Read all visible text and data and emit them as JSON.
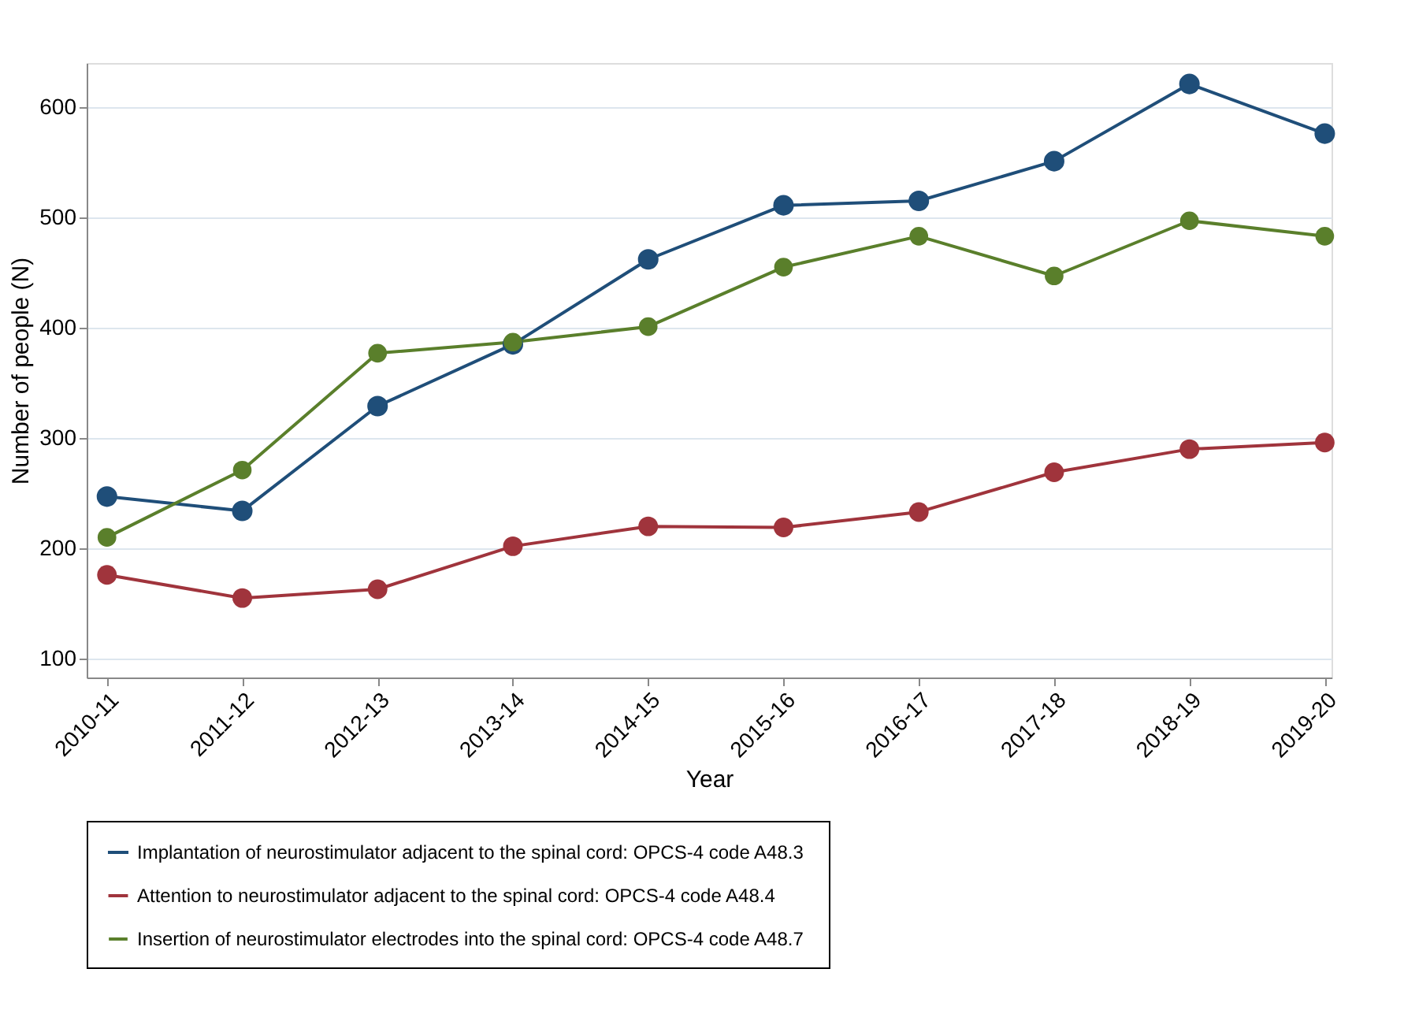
{
  "chart_data": {
    "type": "line",
    "xlabel": "Year",
    "ylabel": "Number of people (N)",
    "categories": [
      "2010-11",
      "2011-12",
      "2012-13",
      "2013-14",
      "2014-15",
      "2015-16",
      "2016-17",
      "2017-18",
      "2018-19",
      "2019-20"
    ],
    "series": [
      {
        "name": "Implantation of neurostimulator adjacent to the spinal cord: OPCS-4 code A48.3",
        "color": "#1f4e79",
        "values": [
          247,
          234,
          329,
          385,
          462,
          511,
          515,
          551,
          621,
          576
        ]
      },
      {
        "name": "Attention to neurostimulator adjacent to the spinal cord: OPCS-4 code A48.4",
        "color": "#a0343c",
        "values": [
          176,
          155,
          163,
          202,
          220,
          219,
          233,
          269,
          290,
          296
        ]
      },
      {
        "name": "Insertion of neurostimulator electrodes  into the spinal cord: OPCS-4 code A48.7",
        "color": "#5a7f2b",
        "values": [
          210,
          271,
          377,
          387,
          401,
          455,
          483,
          447,
          497,
          483
        ]
      }
    ],
    "ylim": [
      83,
      640
    ],
    "yticks": [
      100,
      200,
      300,
      400,
      500,
      600
    ],
    "grid": "y",
    "legend": "bottom",
    "marker": "circle",
    "line_style": "solid"
  }
}
